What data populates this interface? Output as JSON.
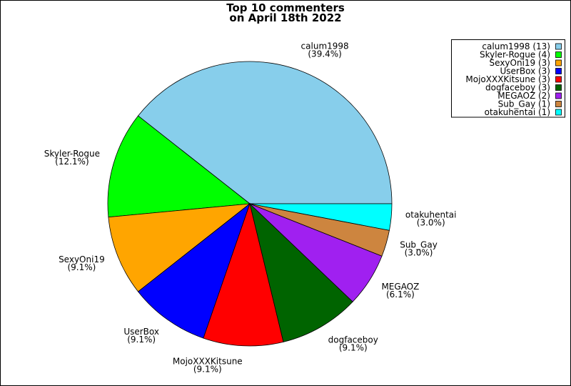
{
  "chart_data": {
    "type": "pie",
    "title": [
      "Top 10 commenters",
      "on April 18th 2022"
    ],
    "categories": [
      "calum1998",
      "Skyler-Rogue",
      "SexyOni19",
      "UserBox",
      "MojoXXXKitsune",
      "dogfaceboy",
      "MEGAOZ",
      "Sub_Gay",
      "otakuhentai"
    ],
    "values": [
      39.4,
      12.1,
      9.1,
      9.1,
      9.1,
      9.1,
      6.1,
      3.0,
      3.0
    ],
    "value_labels": [
      "(39.4%)",
      "(12.1%)",
      "(9.1%)",
      "(9.1%)",
      "(9.1%)",
      "(9.1%)",
      "(6.1%)",
      "(3.0%)",
      "(3.0%)"
    ],
    "legend_labels": [
      "calum1998 (13)",
      "Skyler-Rogue (4)",
      "SexyOni19 (3)",
      "UserBox (3)",
      "MojoXXXKitsune (3)",
      "dogfaceboy (3)",
      "MEGAOZ (2)",
      "Sub_Gay (1)",
      "otakuhentai (1)"
    ],
    "colors": [
      "#87ceeb",
      "#00ff00",
      "#ffa500",
      "#0000ff",
      "#ff0000",
      "#006400",
      "#a020f0",
      "#cd853f",
      "#00ffff"
    ],
    "legend": "upper right"
  }
}
